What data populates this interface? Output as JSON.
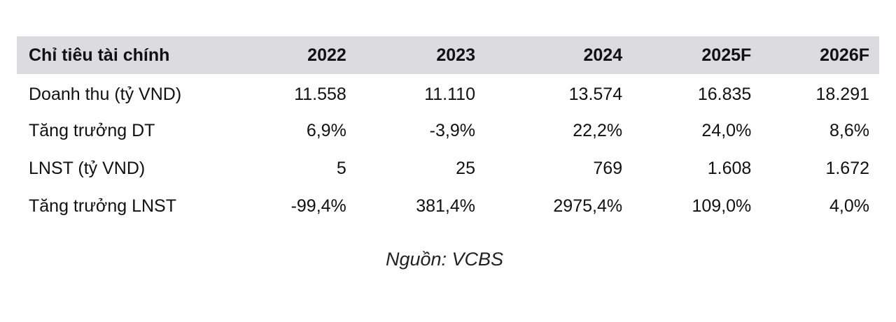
{
  "table": {
    "headers": [
      "Chỉ tiêu tài chính",
      "2022",
      "2023",
      "2024",
      "2025F",
      "2026F"
    ],
    "rows": [
      [
        "Doanh thu (tỷ VND)",
        "11.558",
        "11.110",
        "13.574",
        "16.835",
        "18.291"
      ],
      [
        "Tăng trưởng DT",
        "6,9%",
        "-3,9%",
        "22,2%",
        "24,0%",
        "8,6%"
      ],
      [
        "LNST (tỷ VND)",
        "5",
        "25",
        "769",
        "1.608",
        "1.672"
      ],
      [
        "Tăng trưởng LNST",
        "-99,4%",
        "381,4%",
        "2975,4%",
        "109,0%",
        "4,0%"
      ]
    ]
  },
  "source": "Nguồn: VCBS",
  "colors": {
    "header_bg": "#dcdbdd",
    "text": "#111111"
  }
}
